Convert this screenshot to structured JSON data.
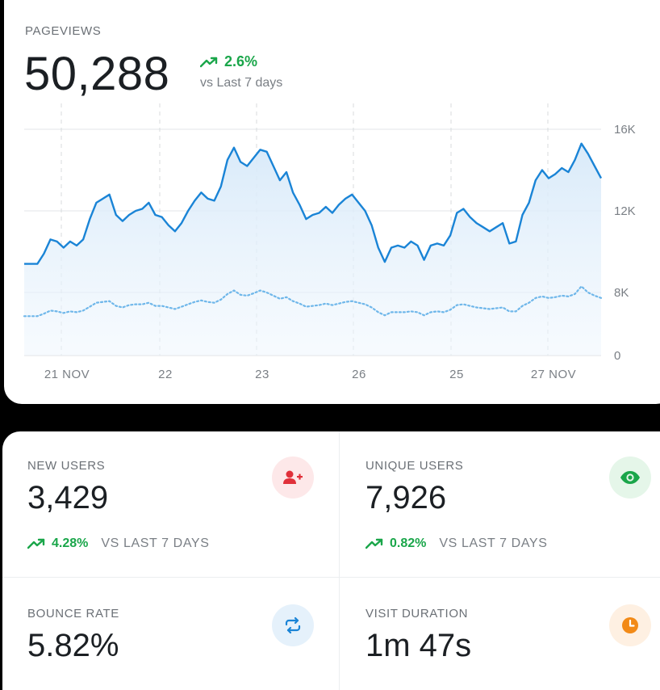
{
  "pageviews": {
    "label": "PAGEVIEWS",
    "value": "50,288",
    "change": "2.6%",
    "compare": "vs Last 7 days"
  },
  "chart_data": {
    "type": "line",
    "y_ticks": [
      "16K",
      "12K",
      "8K",
      "0"
    ],
    "x_ticks": [
      "21 NOV",
      "22",
      "23",
      "26",
      "25",
      "27 NOV"
    ],
    "grid": true,
    "series": [
      {
        "style": "solid",
        "color": "#1a84d6",
        "values": [
          9.4,
          9.4,
          9.4,
          9.9,
          10.6,
          10.5,
          10.2,
          10.5,
          10.3,
          10.6,
          11.6,
          12.4,
          12.6,
          12.8,
          11.8,
          11.5,
          11.8,
          12.0,
          12.1,
          12.4,
          11.8,
          11.7,
          11.3,
          11.0,
          11.4,
          12.0,
          12.5,
          12.9,
          12.6,
          12.5,
          13.2,
          14.5,
          15.1,
          14.4,
          14.2,
          14.6,
          15.0,
          14.9,
          14.2,
          13.5,
          13.9,
          12.9,
          12.3,
          11.6,
          11.8,
          11.9,
          12.2,
          11.9,
          12.3,
          12.6,
          12.8,
          12.4,
          12.0,
          11.3,
          10.2,
          9.5,
          10.2,
          10.3,
          10.2,
          10.5,
          10.3,
          9.6,
          10.3,
          10.4,
          10.3,
          10.8,
          11.9,
          12.1,
          11.7,
          11.4,
          11.2,
          11.0,
          11.2,
          11.4,
          10.4,
          10.5,
          11.8,
          12.4,
          13.5,
          14.0,
          13.6,
          13.8,
          14.1,
          13.9,
          14.5,
          15.3,
          14.8,
          14.2,
          13.6
        ],
        "note": "current period (thousands)"
      },
      {
        "style": "dotted",
        "color": "#6fb7ea",
        "values": [
          5.0,
          5.0,
          5.0,
          5.3,
          5.7,
          5.6,
          5.4,
          5.6,
          5.5,
          5.7,
          6.2,
          6.7,
          6.8,
          6.9,
          6.3,
          6.1,
          6.4,
          6.5,
          6.5,
          6.7,
          6.3,
          6.3,
          6.1,
          5.9,
          6.2,
          6.5,
          6.8,
          7.0,
          6.8,
          6.7,
          7.1,
          7.8,
          8.1,
          7.7,
          7.6,
          7.9,
          8.1,
          8.0,
          7.6,
          7.2,
          7.4,
          6.9,
          6.6,
          6.2,
          6.3,
          6.4,
          6.6,
          6.4,
          6.6,
          6.8,
          6.9,
          6.7,
          6.5,
          6.1,
          5.5,
          5.1,
          5.5,
          5.5,
          5.5,
          5.6,
          5.5,
          5.1,
          5.5,
          5.6,
          5.5,
          5.8,
          6.4,
          6.5,
          6.3,
          6.1,
          6.0,
          5.9,
          6.0,
          6.1,
          5.6,
          5.6,
          6.3,
          6.7,
          7.3,
          7.5,
          7.3,
          7.4,
          7.6,
          7.5,
          7.8,
          8.3,
          8.0,
          7.6,
          7.3
        ],
        "note": "previous period (thousands)"
      }
    ],
    "ylim": [
      0,
      16
    ]
  },
  "stats": {
    "new_users": {
      "label": "NEW USERS",
      "value": "3,429",
      "change": "4.28%",
      "compare": "VS LAST 7 DAYS",
      "icon": "add-user-icon",
      "icon_color": "#e0303a",
      "icon_bg": "#fde8e9"
    },
    "unique_users": {
      "label": "UNIQUE USERS",
      "value": "7,926",
      "change": "0.82%",
      "compare": "VS LAST 7 DAYS",
      "icon": "eye-icon",
      "icon_color": "#1aa64a",
      "icon_bg": "#e5f6e9"
    },
    "bounce_rate": {
      "label": "BOUNCE RATE",
      "value": "5.82%",
      "icon": "refresh-icon",
      "icon_color": "#1a84d6",
      "icon_bg": "#e5f1fb"
    },
    "visit_duration": {
      "label": "VISIT DURATION",
      "value": "1m 47s",
      "icon": "clock-icon",
      "icon_color": "#f28a17",
      "icon_bg": "#fef0e2"
    }
  }
}
